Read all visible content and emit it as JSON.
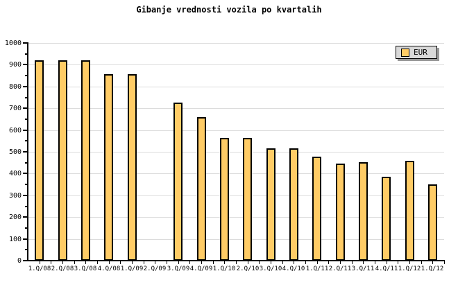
{
  "title": "Gibanje vrednosti vozila po kvartalih",
  "legend": {
    "label": "EUR"
  },
  "colors": {
    "background": "#FFFFFF",
    "bar_fill": "#FFCC66",
    "bar_border": "#000000",
    "grid": "#DCDCDC",
    "axis": "#000000",
    "legend_bg": "#D9D9D9",
    "legend_border": "#000000",
    "legend_shadow": "#999999",
    "text": "#000000"
  },
  "chart_data": {
    "type": "bar",
    "title": "Gibanje vrednosti vozila po kvartalih",
    "categories": [
      "1.Q/08",
      "2.Q/08",
      "3.Q/08",
      "4.Q/08",
      "1.Q/09",
      "2.Q/09",
      "3.Q/09",
      "4.Q/09",
      "1.Q/10",
      "2.Q/10",
      "3.Q/10",
      "4.Q/10",
      "1.Q/11",
      "2.Q/11",
      "3.Q/11",
      "4.Q/11",
      "1.Q/12",
      "1.Q/12"
    ],
    "series": [
      {
        "name": "EUR",
        "values": [
          920,
          920,
          920,
          858,
          858,
          null,
          725,
          658,
          565,
          565,
          515,
          515,
          478,
          446,
          453,
          385,
          459,
          350
        ]
      }
    ],
    "xlabel": "",
    "ylabel": "",
    "ylim": [
      0,
      1000
    ],
    "ytick_step": 100,
    "ytick_minor_step": 50,
    "yticks": [
      0,
      100,
      200,
      300,
      400,
      500,
      600,
      700,
      800,
      900,
      1000
    ],
    "grid": "horizontal-light",
    "legend_position": "top-right"
  }
}
